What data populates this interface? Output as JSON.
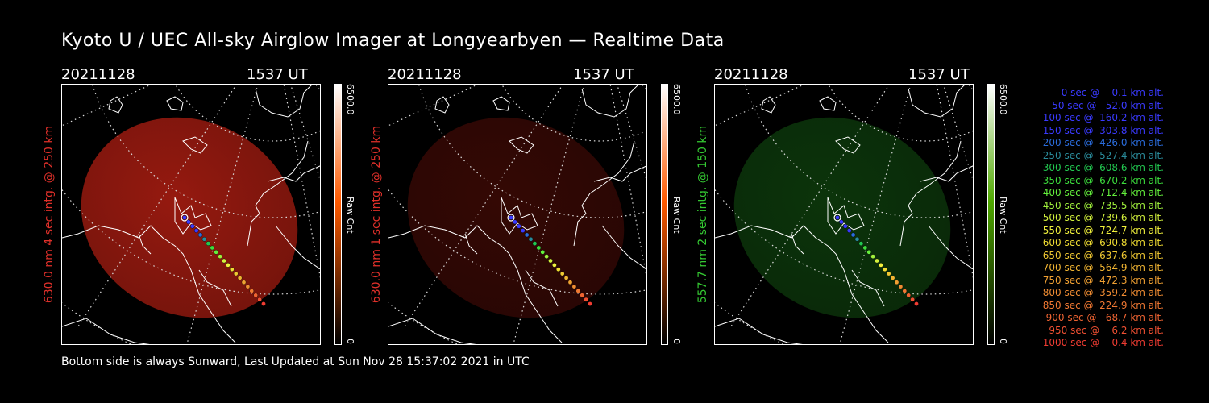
{
  "title": "Kyoto U / UEC All-sky Airglow Imager at Longyearbyen — Realtime Data",
  "panels": [
    {
      "date": "20211128",
      "ut": "1537 UT",
      "ylabel": "630.0 nm 4 sec intg. @ 250 km",
      "label_color": "#e0302a",
      "glow_color": "#b01e12",
      "glow_opacity": 0.85,
      "cbar_top": "#ffffff",
      "cbar_mid": "#ff5a00",
      "cbar_bottom": "#000000",
      "cbar_max": "6500.0",
      "cbar_unit": "Raw Cnt",
      "cbar_min": "0"
    },
    {
      "date": "20211128",
      "ut": "1537 UT",
      "ylabel": "630.0 nm 1 sec intg. @ 250 km",
      "label_color": "#e0302a",
      "glow_color": "#3a0905",
      "glow_opacity": 0.9,
      "cbar_top": "#ffffff",
      "cbar_mid": "#ff5a00",
      "cbar_bottom": "#000000",
      "cbar_max": "6500.0",
      "cbar_unit": "Raw Cnt",
      "cbar_min": "0"
    },
    {
      "date": "20211128",
      "ut": "1537 UT",
      "ylabel": "557.7 nm 2 sec intg. @ 150 km",
      "label_color": "#34c832",
      "glow_color": "#0d3a0c",
      "glow_opacity": 0.9,
      "cbar_top": "#ffffff",
      "cbar_mid": "#4fa800",
      "cbar_bottom": "#000000",
      "cbar_max": "6500.0",
      "cbar_unit": "Raw Cnt",
      "cbar_min": "0"
    }
  ],
  "footer": "Bottom side is always Sunward, Last Updated at Sun Nov 28 15:37:02 2021 in UTC",
  "legend": [
    {
      "text": "0 sec @    0.1 km alt.",
      "color": "#3a3aff"
    },
    {
      "text": "50 sec @   52.0 km alt.",
      "color": "#3a3aff"
    },
    {
      "text": "100 sec @  160.2 km alt.",
      "color": "#3a3aff"
    },
    {
      "text": "150 sec @  303.8 km alt.",
      "color": "#3a3aff"
    },
    {
      "text": "200 sec @  426.0 km alt.",
      "color": "#2a6cdc"
    },
    {
      "text": "250 sec @  527.4 km alt.",
      "color": "#2a8c9c"
    },
    {
      "text": "300 sec @  608.6 km alt.",
      "color": "#22c850"
    },
    {
      "text": "350 sec @  670.2 km alt.",
      "color": "#3cdc3c"
    },
    {
      "text": "400 sec @  712.4 km alt.",
      "color": "#64f03c"
    },
    {
      "text": "450 sec @  735.5 km alt.",
      "color": "#a0f03c"
    },
    {
      "text": "500 sec @  739.6 km alt.",
      "color": "#d2f03c"
    },
    {
      "text": "550 sec @  724.7 km alt.",
      "color": "#f0f03c"
    },
    {
      "text": "600 sec @  690.8 km alt.",
      "color": "#f0dc32"
    },
    {
      "text": "650 sec @  637.6 km alt.",
      "color": "#f0c832"
    },
    {
      "text": "700 sec @  564.9 km alt.",
      "color": "#f0b432"
    },
    {
      "text": "750 sec @  472.3 km alt.",
      "color": "#f0a032"
    },
    {
      "text": "800 sec @  359.2 km alt.",
      "color": "#f08c32"
    },
    {
      "text": "850 sec @  224.9 km alt.",
      "color": "#f07832"
    },
    {
      "text": "900 sec @   68.7 km alt.",
      "color": "#f06432"
    },
    {
      "text": "950 sec @    6.2 km alt.",
      "color": "#f05032"
    },
    {
      "text": "1000 sec @    0.4 km alt.",
      "color": "#f03c32"
    }
  ]
}
